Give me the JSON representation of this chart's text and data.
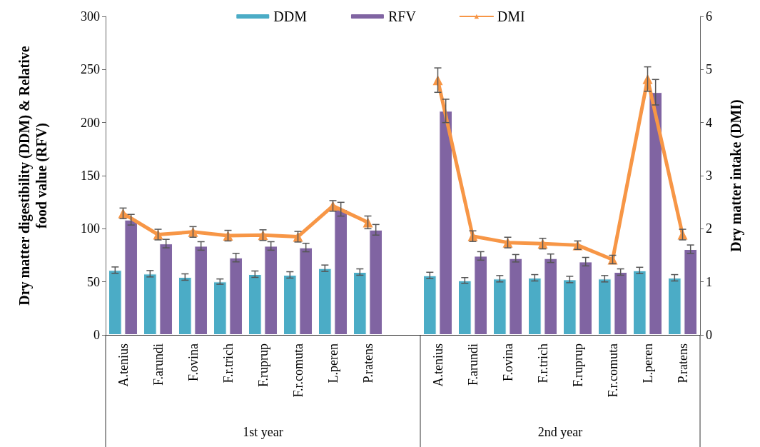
{
  "chart_data": {
    "type": "bar",
    "categories": [
      "A.tenius",
      "F.arundi",
      "F.ovina",
      "F.r.trich",
      "F.ruprup",
      "F.r.comuta",
      "L.peren",
      "P.ratens",
      null,
      "A.tenius",
      "F.arundi",
      "F.ovina",
      "F.r.trich",
      "F.ruprup",
      "F.r.comuta",
      "L.peren",
      "P.ratens"
    ],
    "series": [
      {
        "name": "DDM",
        "color": "#4bacc6",
        "values": [
          61,
          57.6,
          54.5,
          50.2,
          57.2,
          56.5,
          62.8,
          59.2,
          null,
          56,
          51.3,
          52.9,
          53.8,
          52.2,
          52.9,
          60.7,
          53.8
        ],
        "errors": [
          3,
          3,
          3,
          2.5,
          3,
          3,
          3,
          3,
          null,
          3,
          2.7,
          3,
          3,
          3,
          3,
          3,
          3
        ]
      },
      {
        "name": "RFV",
        "color": "#8064a2",
        "values": [
          108.5,
          86,
          83.8,
          72.8,
          83.8,
          82.3,
          118.4,
          99,
          null,
          211,
          74.4,
          72.2,
          72.2,
          69,
          59.2,
          228.6,
          80.7
        ],
        "errors": [
          5,
          4,
          4,
          4,
          4,
          4,
          6.5,
          5,
          null,
          11,
          4,
          3.5,
          4,
          4,
          3,
          12,
          4
        ]
      },
      {
        "name": "DMI",
        "type": "line",
        "axis": "y2",
        "color": "#f79646",
        "values": [
          2.29,
          1.89,
          1.94,
          1.87,
          1.88,
          1.85,
          2.43,
          2.12,
          null,
          4.8,
          1.86,
          1.74,
          1.72,
          1.69,
          1.42,
          4.82,
          1.89
        ],
        "errors": [
          0.1,
          0.1,
          0.1,
          0.1,
          0.1,
          0.1,
          0.1,
          0.12,
          null,
          0.23,
          0.1,
          0.1,
          0.1,
          0.08,
          0.08,
          0.23,
          0.1
        ]
      }
    ],
    "ylabel": "Dry matter digestibility (DDM) & Relative food value (RFV)",
    "y2label": "Dry matter intake (DMI)",
    "ylim": [
      0,
      300
    ],
    "yticks": [
      0,
      50,
      100,
      150,
      200,
      250,
      300
    ],
    "y2lim": [
      0,
      6
    ],
    "y2ticks": [
      0,
      1,
      2,
      3,
      4,
      5,
      6
    ],
    "annotations": [
      "1st year",
      "2nd year"
    ],
    "legend": "top",
    "marker": "triangle",
    "grid": false
  }
}
